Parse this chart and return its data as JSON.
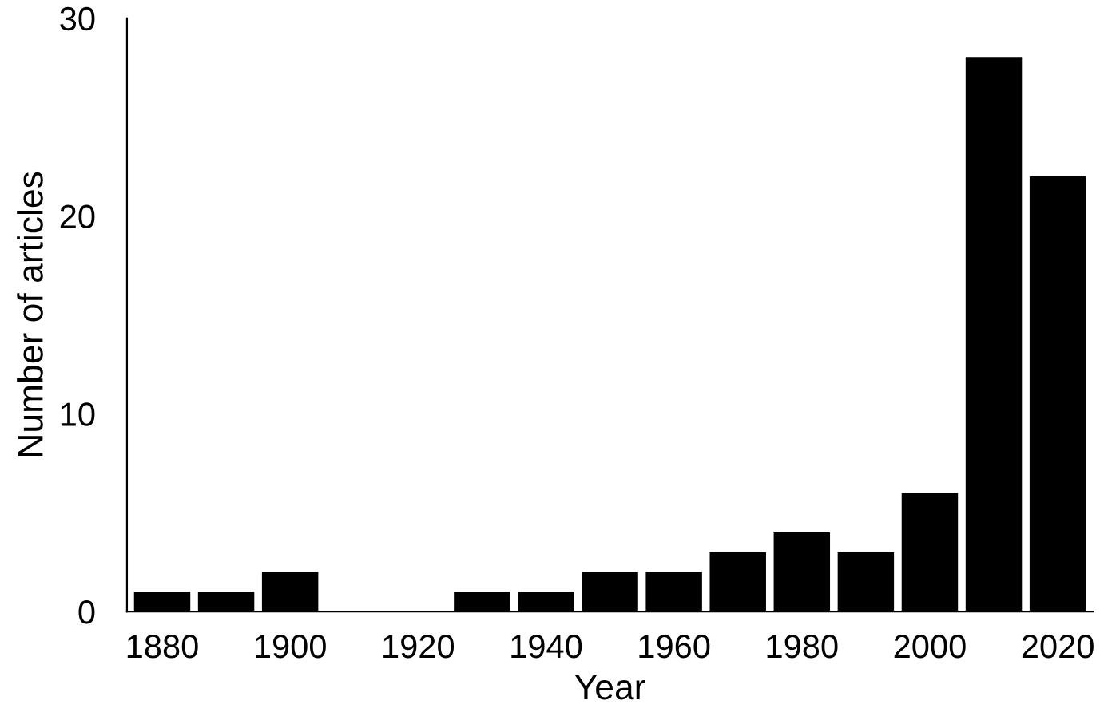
{
  "chart_data": {
    "type": "bar",
    "xlabel": "Year",
    "ylabel": "Number of articles",
    "categories": [
      "1880",
      null,
      "1900",
      null,
      "1920",
      null,
      "1940",
      null,
      "1960",
      null,
      "1980",
      null,
      "2000",
      null,
      "2020"
    ],
    "values": [
      1,
      1,
      2,
      0,
      0,
      1,
      1,
      2,
      2,
      3,
      4,
      3,
      6,
      28,
      22
    ],
    "color": "#000000",
    "ylim": [
      0,
      30
    ],
    "yticks": [
      0,
      10,
      20,
      30
    ],
    "grid": false
  }
}
